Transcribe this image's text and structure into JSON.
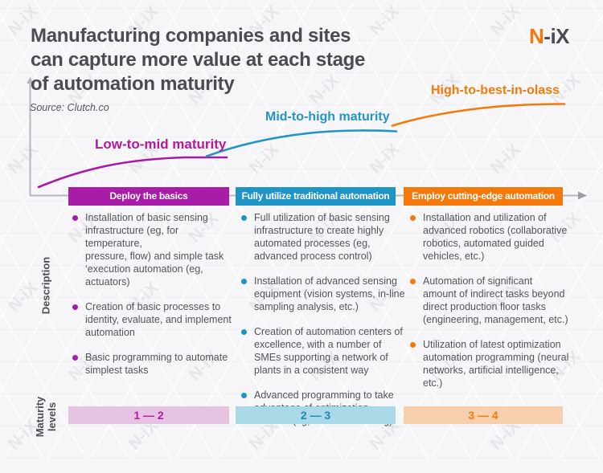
{
  "page": {
    "title": "Manufacturing companies and sites\ncan capture more value at each stage\nof automation maturity",
    "source": "Source: Clutch.co",
    "logo": {
      "part1": "N",
      "part2": "-iX"
    },
    "watermark": "N-iX"
  },
  "curve_labels": {
    "low": "Low-to-mid maturity",
    "mid": "Mid-to-high maturity",
    "high": "High-to-best-in-olass"
  },
  "row_labels": {
    "description": "Description",
    "maturity": "Maturity\nlevels"
  },
  "stages": [
    {
      "header": "Deploy the basics",
      "level": "1 — 2",
      "bullets": [
        "Installation of basic sensing\ninfrastructure (eg, for\ntemperature,\npressure, flow) and simple task\n‘execution automation (eg,\nactuators)",
        "Creation of basic processes to\nidentity, evaluate, and implement\nautomation",
        "Basic programming to automate\nsimplest tasks"
      ]
    },
    {
      "header": "Fully utilize traditional automation",
      "level": "2 — 3",
      "bullets": [
        "Full utilization of basic sensing\ninfrastructure to create highly\nautomated processes (eg,\nadvanced process control)",
        "Installation of advanced sensing\nequipment (vision systems, in-line\nsampling analysis, etc.)",
        "Creation of automation centers of\nexcellence, with a number of\nSMEs supporting a network of\nplants in a consistent way",
        "Advanced programming to take\nadvantage of optimization\nroutines (eg, machine learning)"
      ]
    },
    {
      "header": "Employ cutting-edge automation",
      "level": "3 — 4",
      "bullets": [
        "Installation and utilization of\nadvanced robotics (collaborative\nrobotics, automated guided\nvehicles, etc.)",
        "Automation of significant\namount of indirect tasks beyond\ndirect production floor tasks\n(engineering, management, etc.)",
        "Utilization of latest optimization\nautomation programming (neural\nnetworks, artificial intelligence,\netc.)"
      ]
    }
  ],
  "colors": {
    "stage1": "#a81ca8",
    "stage2": "#1e95c6",
    "stage3": "#f5790a",
    "stage1_light": "#e6c3e3",
    "stage2_light": "#a9d8e7",
    "stage3_light": "#f8cfad",
    "title_text": "#4b4b54",
    "axis_gray": "#b6b6bf",
    "background": "#f6f6f8"
  }
}
